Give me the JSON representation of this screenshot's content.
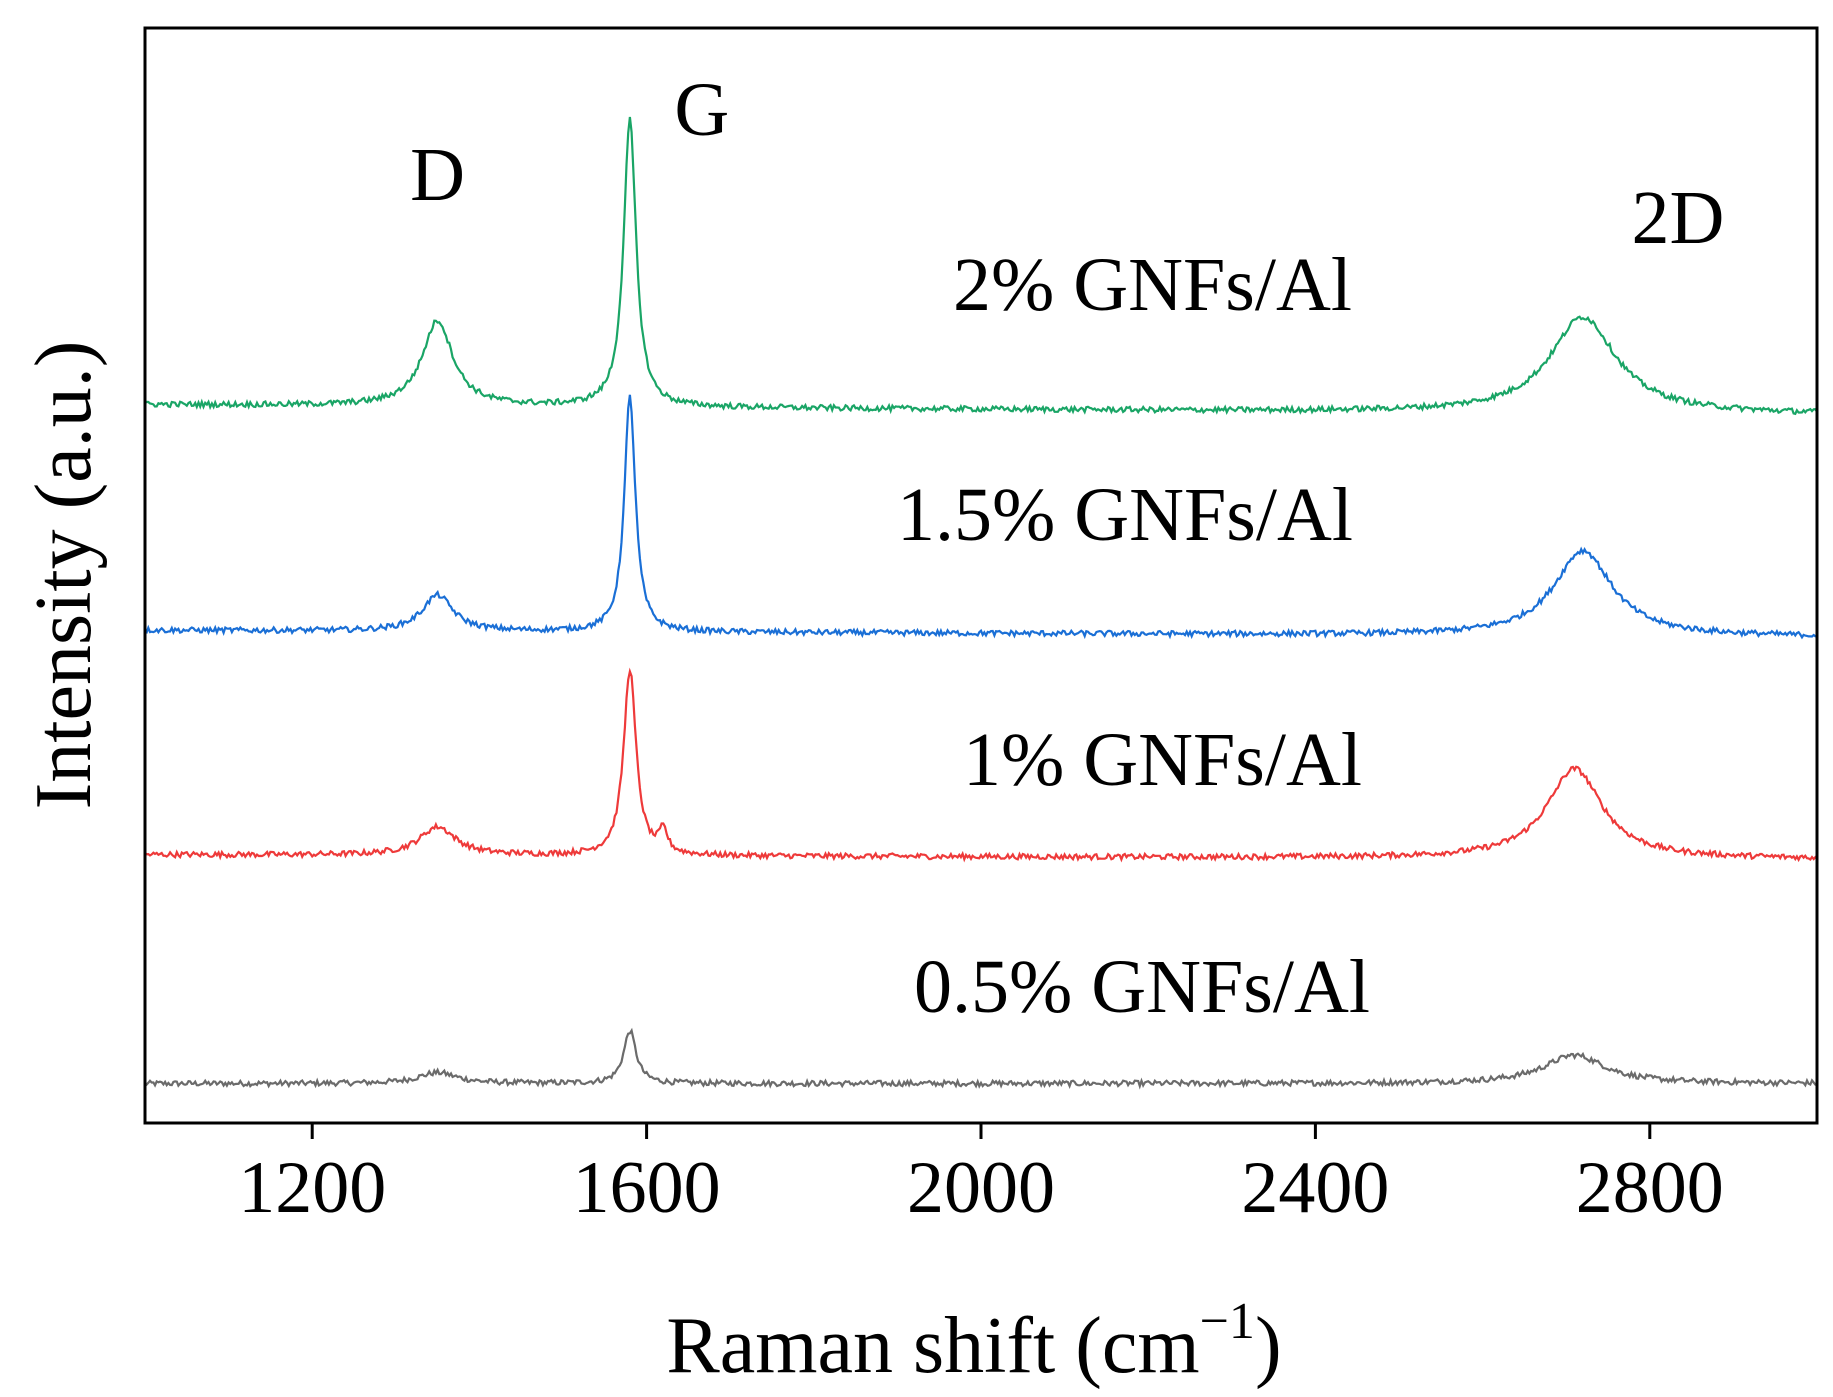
{
  "chart_data": {
    "type": "line",
    "title": "",
    "xlabel": "Raman shift (cm",
    "xlabel_unit_exponent": "−1",
    "xlabel_close": ")",
    "ylabel": "Intensity (a.u.)",
    "xlim": [
      1000,
      3000
    ],
    "ylim": [
      0,
      1
    ],
    "xticks": [
      1200,
      1600,
      2000,
      2400,
      2800
    ],
    "xtick_labels": [
      "1200",
      "1600",
      "2000",
      "2400",
      "2800"
    ],
    "yticks_shown": false,
    "grid": false,
    "legend": "inline labels",
    "peak_annotations": [
      {
        "label": "D",
        "x": 1350
      },
      {
        "label": "G",
        "x": 1580
      },
      {
        "label": "2D",
        "x": 2720
      }
    ],
    "series": [
      {
        "name": "0.5% GNFs/Al",
        "color": "#6b6b6b",
        "baseline": 0.036,
        "slope": 0.0,
        "noise": 0.0025,
        "peaks": [
          {
            "center": 1350,
            "height": 0.01,
            "width": 28
          },
          {
            "center": 1580,
            "height": 0.048,
            "width": 9
          },
          {
            "center": 2710,
            "height": 0.026,
            "width": 45
          }
        ]
      },
      {
        "name": "1% GNFs/Al",
        "color": "#ee3a3a",
        "baseline": 0.245,
        "slope": -0.004,
        "noise": 0.0025,
        "peaks": [
          {
            "center": 1350,
            "height": 0.026,
            "width": 26
          },
          {
            "center": 1580,
            "height": 0.17,
            "width": 9
          },
          {
            "center": 1620,
            "height": 0.02,
            "width": 6
          },
          {
            "center": 2710,
            "height": 0.082,
            "width": 40
          }
        ]
      },
      {
        "name": "1.5% GNFs/Al",
        "color": "#1a6fd6",
        "baseline": 0.45,
        "slope": -0.006,
        "noise": 0.0025,
        "peaks": [
          {
            "center": 1350,
            "height": 0.033,
            "width": 22
          },
          {
            "center": 1580,
            "height": 0.215,
            "width": 8
          },
          {
            "center": 2720,
            "height": 0.078,
            "width": 42
          }
        ]
      },
      {
        "name": "2% GNFs/Al",
        "color": "#1aa566",
        "baseline": 0.656,
        "slope": -0.009,
        "noise": 0.0025,
        "peaks": [
          {
            "center": 1350,
            "height": 0.078,
            "width": 22
          },
          {
            "center": 1580,
            "height": 0.262,
            "width": 9
          },
          {
            "center": 2720,
            "height": 0.088,
            "width": 48
          }
        ]
      }
    ]
  }
}
